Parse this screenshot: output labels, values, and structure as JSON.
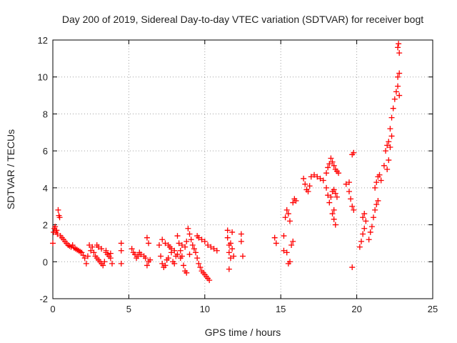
{
  "chart_data": {
    "type": "scatter",
    "title": "Day 200 of 2019, Sidereal Day-to-day VTEC variation (SDTVAR) for receiver bogt",
    "xlabel": "GPS time / hours",
    "ylabel": "SDTVAR / TECUs",
    "xlim": [
      0,
      25
    ],
    "ylim": [
      -2,
      12
    ],
    "xticks": [
      "0",
      "5",
      "10",
      "15",
      "20",
      "25"
    ],
    "yticks": [
      "-2",
      "0",
      "2",
      "4",
      "6",
      "8",
      "10",
      "12"
    ],
    "grid": true,
    "marker": "+",
    "marker_color": "#ff0000",
    "series": [
      {
        "name": "SDTVAR",
        "points": [
          [
            0.0,
            1.0
          ],
          [
            0.05,
            1.6
          ],
          [
            0.1,
            1.8
          ],
          [
            0.15,
            1.9
          ],
          [
            0.2,
            1.6
          ],
          [
            0.25,
            1.7
          ],
          [
            0.3,
            1.5
          ],
          [
            0.35,
            2.8
          ],
          [
            0.4,
            2.5
          ],
          [
            0.45,
            2.4
          ],
          [
            0.5,
            1.4
          ],
          [
            0.6,
            1.3
          ],
          [
            0.7,
            1.2
          ],
          [
            0.8,
            1.1
          ],
          [
            0.9,
            1.0
          ],
          [
            1.0,
            0.9
          ],
          [
            1.1,
            0.85
          ],
          [
            1.2,
            0.8
          ],
          [
            1.3,
            0.9
          ],
          [
            1.4,
            0.75
          ],
          [
            1.5,
            0.7
          ],
          [
            1.6,
            0.65
          ],
          [
            1.7,
            0.6
          ],
          [
            1.8,
            0.55
          ],
          [
            1.9,
            0.5
          ],
          [
            2.0,
            0.35
          ],
          [
            2.1,
            0.2
          ],
          [
            2.2,
            -0.1
          ],
          [
            2.3,
            0.3
          ],
          [
            2.4,
            0.9
          ],
          [
            2.5,
            0.6
          ],
          [
            2.6,
            0.8
          ],
          [
            2.7,
            0.5
          ],
          [
            2.8,
            0.3
          ],
          [
            2.9,
            0.2
          ],
          [
            3.0,
            0.1
          ],
          [
            3.1,
            0.0
          ],
          [
            3.2,
            -0.1
          ],
          [
            3.3,
            -0.2
          ],
          [
            3.4,
            0.0
          ],
          [
            3.5,
            0.5
          ],
          [
            3.6,
            0.4
          ],
          [
            3.7,
            0.3
          ],
          [
            3.8,
            0.2
          ],
          [
            3.9,
            -0.1
          ],
          [
            2.9,
            0.9
          ],
          [
            3.0,
            0.8
          ],
          [
            3.2,
            0.7
          ],
          [
            3.5,
            0.6
          ],
          [
            3.8,
            0.45
          ],
          [
            4.5,
            1.0
          ],
          [
            4.5,
            0.6
          ],
          [
            4.5,
            -0.1
          ],
          [
            5.2,
            0.7
          ],
          [
            5.3,
            0.5
          ],
          [
            5.4,
            0.4
          ],
          [
            5.5,
            0.2
          ],
          [
            5.6,
            0.3
          ],
          [
            5.7,
            0.5
          ],
          [
            5.8,
            0.4
          ],
          [
            6.0,
            0.3
          ],
          [
            6.1,
            0.2
          ],
          [
            6.2,
            1.3
          ],
          [
            6.3,
            1.0
          ],
          [
            6.3,
            0.0
          ],
          [
            6.2,
            -0.2
          ],
          [
            6.4,
            0.1
          ],
          [
            7.0,
            0.9
          ],
          [
            7.1,
            0.3
          ],
          [
            7.2,
            -0.1
          ],
          [
            7.3,
            -0.3
          ],
          [
            7.4,
            -0.2
          ],
          [
            7.5,
            0.1
          ],
          [
            7.6,
            0.2
          ],
          [
            7.7,
            0.8
          ],
          [
            7.8,
            0.5
          ],
          [
            7.9,
            0.0
          ],
          [
            8.0,
            -0.1
          ],
          [
            8.1,
            0.3
          ],
          [
            8.2,
            1.4
          ],
          [
            8.3,
            1.0
          ],
          [
            8.4,
            0.6
          ],
          [
            8.5,
            0.3
          ],
          [
            8.6,
            -0.2
          ],
          [
            8.7,
            -0.5
          ],
          [
            8.8,
            -0.6
          ],
          [
            8.9,
            1.8
          ],
          [
            9.0,
            1.5
          ],
          [
            9.1,
            1.2
          ],
          [
            9.2,
            0.9
          ],
          [
            9.3,
            0.7
          ],
          [
            9.4,
            0.5
          ],
          [
            9.5,
            0.2
          ],
          [
            9.6,
            -0.1
          ],
          [
            9.7,
            -0.3
          ],
          [
            9.8,
            -0.5
          ],
          [
            9.9,
            -0.6
          ],
          [
            10.0,
            -0.7
          ],
          [
            10.1,
            -0.8
          ],
          [
            10.2,
            -0.9
          ],
          [
            10.3,
            -1.0
          ],
          [
            9.5,
            1.4
          ],
          [
            9.6,
            1.3
          ],
          [
            9.8,
            1.2
          ],
          [
            10.0,
            1.1
          ],
          [
            10.2,
            0.9
          ],
          [
            10.4,
            0.8
          ],
          [
            10.6,
            0.7
          ],
          [
            10.8,
            0.6
          ],
          [
            7.2,
            1.2
          ],
          [
            7.4,
            1.0
          ],
          [
            7.6,
            0.9
          ],
          [
            7.8,
            0.7
          ],
          [
            8.0,
            0.6
          ],
          [
            8.2,
            0.4
          ],
          [
            8.4,
            0.2
          ],
          [
            8.5,
            0.9
          ],
          [
            8.7,
            0.8
          ],
          [
            8.8,
            1.1
          ],
          [
            9.0,
            0.4
          ],
          [
            11.5,
            1.7
          ],
          [
            11.5,
            1.3
          ],
          [
            11.6,
            0.9
          ],
          [
            11.6,
            0.5
          ],
          [
            11.7,
            0.2
          ],
          [
            11.6,
            -0.4
          ],
          [
            11.7,
            1.0
          ],
          [
            11.8,
            0.7
          ],
          [
            11.8,
            1.6
          ],
          [
            11.9,
            0.3
          ],
          [
            12.4,
            1.5
          ],
          [
            12.4,
            1.1
          ],
          [
            12.5,
            0.3
          ],
          [
            14.6,
            1.3
          ],
          [
            14.7,
            1.0
          ],
          [
            15.2,
            1.4
          ],
          [
            15.3,
            2.4
          ],
          [
            15.4,
            2.8
          ],
          [
            15.5,
            2.6
          ],
          [
            15.6,
            2.2
          ],
          [
            15.2,
            0.6
          ],
          [
            15.4,
            0.5
          ],
          [
            15.6,
            0.0
          ],
          [
            15.5,
            -0.1
          ],
          [
            15.7,
            0.9
          ],
          [
            15.8,
            1.1
          ],
          [
            15.8,
            3.2
          ],
          [
            15.9,
            3.4
          ],
          [
            16.0,
            3.3
          ],
          [
            16.5,
            4.5
          ],
          [
            16.6,
            4.2
          ],
          [
            16.7,
            3.9
          ],
          [
            16.8,
            3.8
          ],
          [
            16.9,
            4.1
          ],
          [
            17.0,
            4.6
          ],
          [
            17.2,
            4.7
          ],
          [
            17.4,
            4.6
          ],
          [
            17.6,
            4.5
          ],
          [
            17.8,
            4.4
          ],
          [
            18.0,
            4.8
          ],
          [
            18.1,
            5.1
          ],
          [
            18.2,
            5.3
          ],
          [
            18.3,
            5.6
          ],
          [
            18.4,
            5.4
          ],
          [
            18.5,
            5.2
          ],
          [
            18.6,
            5.0
          ],
          [
            18.7,
            4.9
          ],
          [
            18.8,
            4.8
          ],
          [
            18.0,
            4.0
          ],
          [
            18.1,
            3.6
          ],
          [
            18.2,
            3.2
          ],
          [
            18.3,
            3.5
          ],
          [
            18.4,
            3.8
          ],
          [
            18.5,
            3.9
          ],
          [
            18.6,
            3.7
          ],
          [
            18.7,
            3.5
          ],
          [
            18.4,
            2.6
          ],
          [
            18.5,
            2.3
          ],
          [
            18.6,
            2.0
          ],
          [
            18.5,
            2.8
          ],
          [
            19.3,
            4.2
          ],
          [
            19.5,
            3.8
          ],
          [
            19.6,
            3.4
          ],
          [
            19.7,
            3.0
          ],
          [
            19.5,
            4.3
          ],
          [
            19.8,
            2.8
          ],
          [
            19.8,
            5.9
          ],
          [
            19.7,
            5.8
          ],
          [
            19.7,
            -0.3
          ],
          [
            20.2,
            0.8
          ],
          [
            20.3,
            1.1
          ],
          [
            20.4,
            1.5
          ],
          [
            20.5,
            1.8
          ],
          [
            20.6,
            2.2
          ],
          [
            20.4,
            2.4
          ],
          [
            20.5,
            2.6
          ],
          [
            20.8,
            1.2
          ],
          [
            20.9,
            1.6
          ],
          [
            21.0,
            1.9
          ],
          [
            21.1,
            2.4
          ],
          [
            21.2,
            2.8
          ],
          [
            21.3,
            3.1
          ],
          [
            21.4,
            3.3
          ],
          [
            21.2,
            4.0
          ],
          [
            21.3,
            4.3
          ],
          [
            21.4,
            4.6
          ],
          [
            21.5,
            4.7
          ],
          [
            21.6,
            4.4
          ],
          [
            21.8,
            5.2
          ],
          [
            21.9,
            6.0
          ],
          [
            22.0,
            6.3
          ],
          [
            22.1,
            6.5
          ],
          [
            22.2,
            7.2
          ],
          [
            22.3,
            7.8
          ],
          [
            22.4,
            8.3
          ],
          [
            22.5,
            8.8
          ],
          [
            22.6,
            9.2
          ],
          [
            22.7,
            10.0
          ],
          [
            22.8,
            10.2
          ],
          [
            22.7,
            11.6
          ],
          [
            22.75,
            11.8
          ],
          [
            22.8,
            11.3
          ],
          [
            22.7,
            9.5
          ],
          [
            22.8,
            9.0
          ],
          [
            22.3,
            6.8
          ],
          [
            22.2,
            6.2
          ],
          [
            22.1,
            5.5
          ],
          [
            22.0,
            5.0
          ]
        ]
      }
    ]
  }
}
